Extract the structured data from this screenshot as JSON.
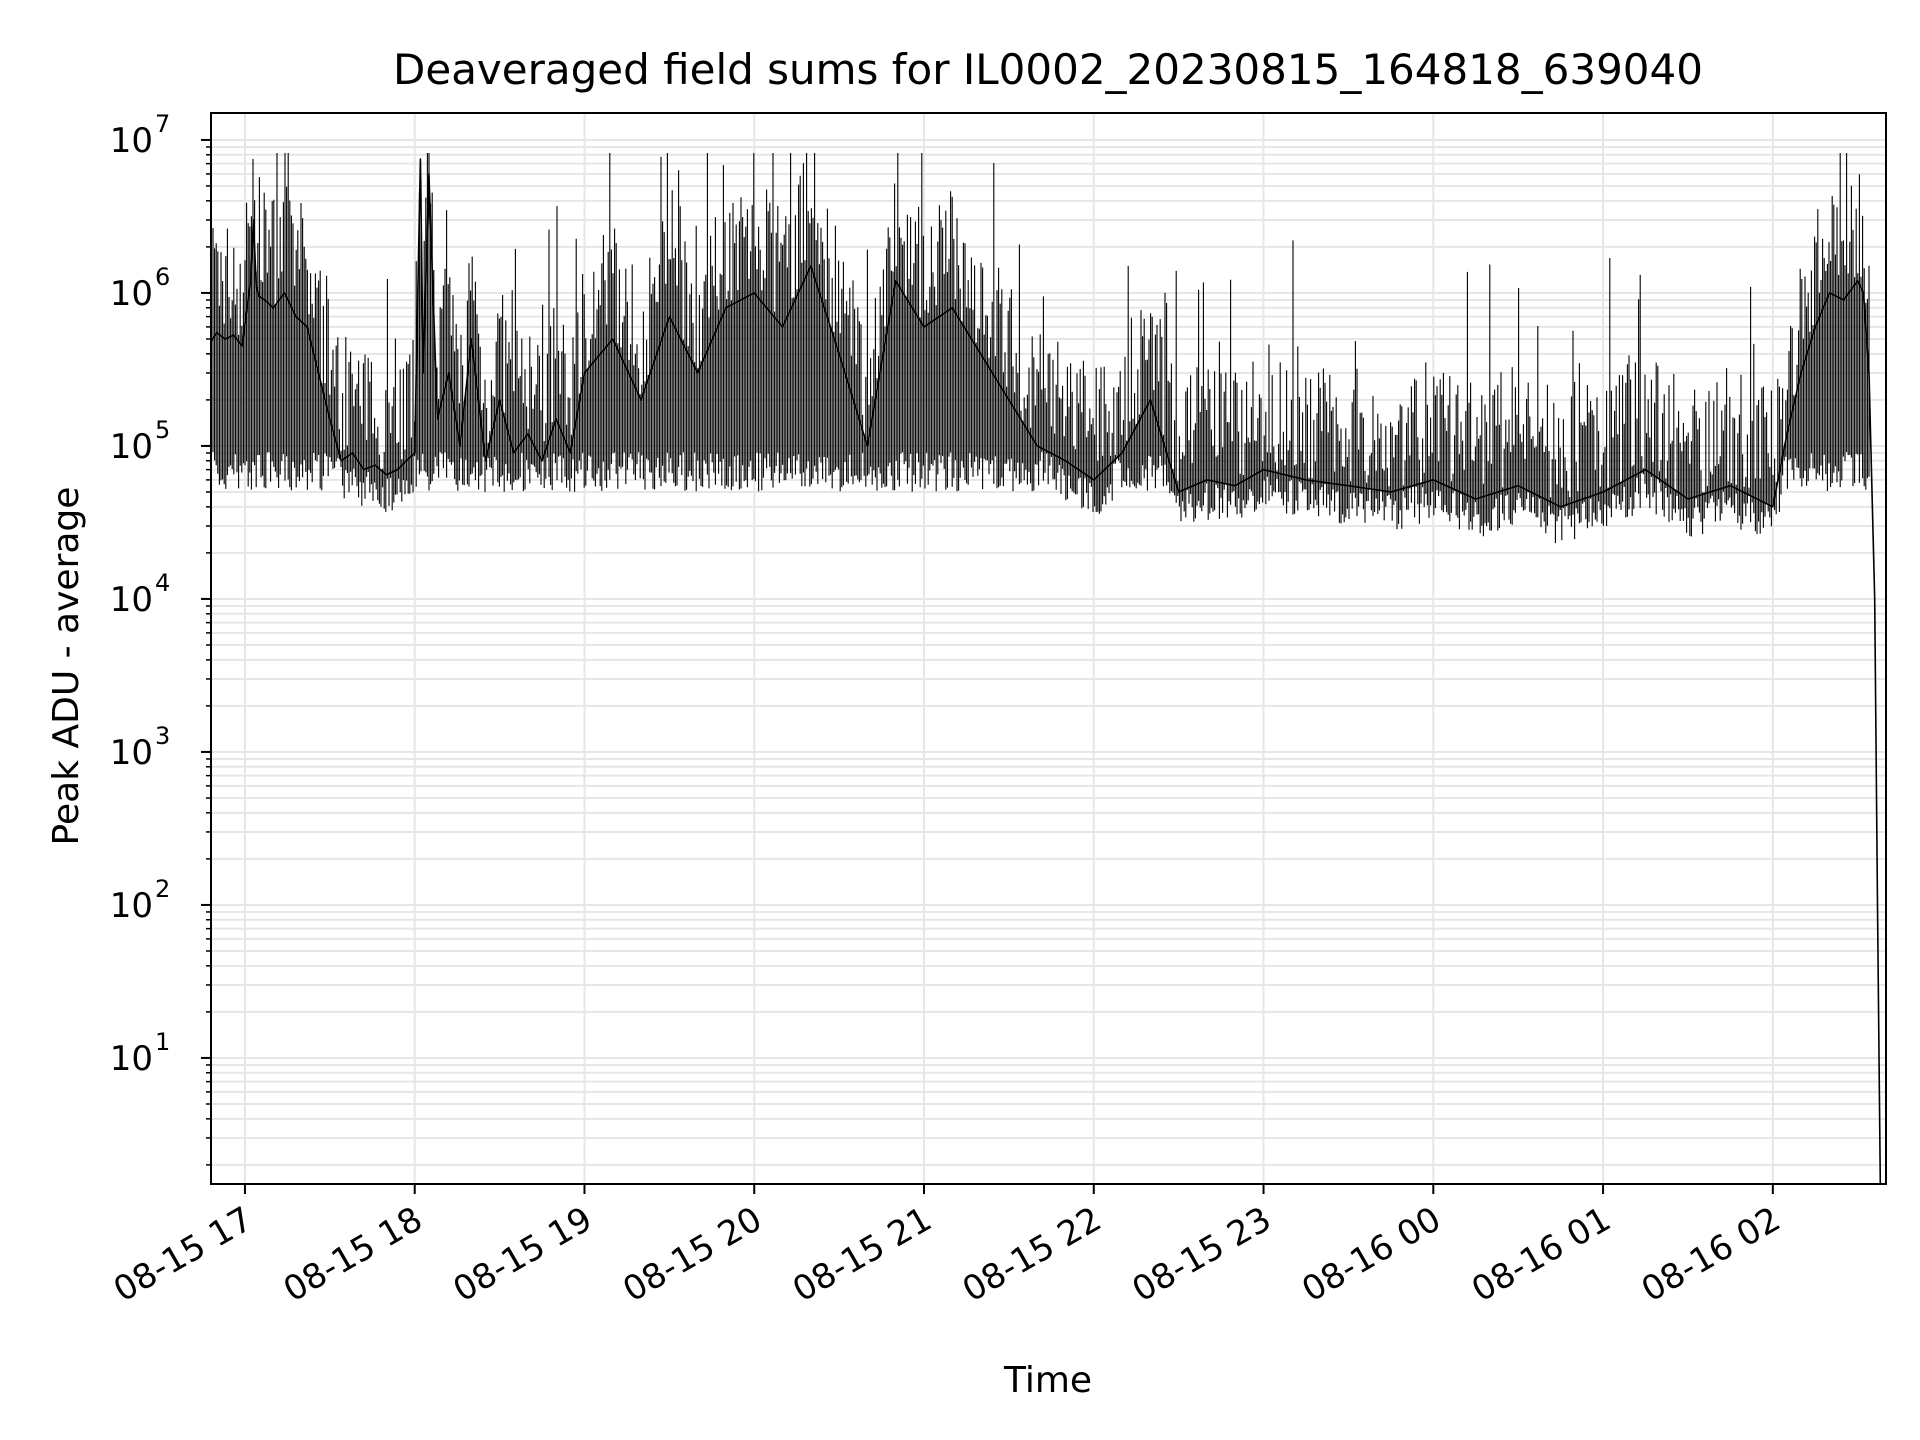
{
  "chart_data": {
    "type": "line",
    "title": "Deaveraged field sums for IL0002_20230815_164818_639040",
    "xlabel": "Time",
    "ylabel": "Peak ADU - average",
    "yscale": "log",
    "ylim": [
      1.5,
      15000000
    ],
    "xlim": [
      "2023-08-15 16:48",
      "2023-08-16 02:40"
    ],
    "grid": true,
    "grid_color": "#e6e6e6",
    "line_color": "#000000",
    "x_ticks": [
      "08-15 17",
      "08-15 18",
      "08-15 19",
      "08-15 20",
      "08-15 21",
      "08-15 22",
      "08-15 23",
      "08-16 00",
      "08-16 01",
      "08-16 02"
    ],
    "y_ticks": [
      {
        "base": "10",
        "exp": "1"
      },
      {
        "base": "10",
        "exp": "2"
      },
      {
        "base": "10",
        "exp": "3"
      },
      {
        "base": "10",
        "exp": "4"
      },
      {
        "base": "10",
        "exp": "5"
      },
      {
        "base": "10",
        "exp": "6"
      },
      {
        "base": "10",
        "exp": "7"
      }
    ],
    "series": [
      {
        "x": [
          "2023-08-15 16:48",
          "2023-08-15 16:50",
          "2023-08-15 16:53",
          "2023-08-15 16:56",
          "2023-08-15 16:59",
          "2023-08-15 17:02",
          "2023-08-15 17:03",
          "2023-08-15 17:04",
          "2023-08-15 17:05",
          "2023-08-15 17:07",
          "2023-08-15 17:10",
          "2023-08-15 17:14",
          "2023-08-15 17:18",
          "2023-08-15 17:22",
          "2023-08-15 17:26",
          "2023-08-15 17:30",
          "2023-08-15 17:34",
          "2023-08-15 17:38",
          "2023-08-15 17:42",
          "2023-08-15 17:46",
          "2023-08-15 17:50",
          "2023-08-15 17:54",
          "2023-08-15 17:57",
          "2023-08-15 18:00",
          "2023-08-15 18:02",
          "2023-08-15 18:03",
          "2023-08-15 18:05",
          "2023-08-15 18:08",
          "2023-08-15 18:12",
          "2023-08-15 18:16",
          "2023-08-15 18:20",
          "2023-08-15 18:25",
          "2023-08-15 18:30",
          "2023-08-15 18:35",
          "2023-08-15 18:40",
          "2023-08-15 18:45",
          "2023-08-15 18:50",
          "2023-08-15 18:55",
          "2023-08-15 19:00",
          "2023-08-15 19:10",
          "2023-08-15 19:20",
          "2023-08-15 19:30",
          "2023-08-15 19:40",
          "2023-08-15 19:50",
          "2023-08-15 20:00",
          "2023-08-15 20:10",
          "2023-08-15 20:20",
          "2023-08-15 20:30",
          "2023-08-15 20:40",
          "2023-08-15 20:50",
          "2023-08-15 21:00",
          "2023-08-15 21:10",
          "2023-08-15 21:20",
          "2023-08-15 21:30",
          "2023-08-15 21:40",
          "2023-08-15 21:50",
          "2023-08-15 22:00",
          "2023-08-15 22:10",
          "2023-08-15 22:20",
          "2023-08-15 22:30",
          "2023-08-15 22:40",
          "2023-08-15 22:50",
          "2023-08-15 23:00",
          "2023-08-15 23:15",
          "2023-08-15 23:30",
          "2023-08-15 23:45",
          "2023-08-16 00:00",
          "2023-08-16 00:15",
          "2023-08-16 00:30",
          "2023-08-16 00:45",
          "2023-08-16 01:00",
          "2023-08-16 01:15",
          "2023-08-16 01:30",
          "2023-08-16 01:45",
          "2023-08-16 02:00",
          "2023-08-16 02:05",
          "2023-08-16 02:10",
          "2023-08-16 02:15",
          "2023-08-16 02:20",
          "2023-08-16 02:25",
          "2023-08-16 02:30",
          "2023-08-16 02:32",
          "2023-08-16 02:34",
          "2023-08-16 02:36",
          "2023-08-16 02:37",
          "2023-08-16 02:38"
        ],
        "y": [
          480000,
          550000,
          500000,
          530000,
          450000,
          1200000,
          3000000,
          1100000,
          950000,
          900000,
          800000,
          1000000,
          700000,
          600000,
          300000,
          150000,
          80000,
          90000,
          70000,
          75000,
          65000,
          70000,
          80000,
          90000,
          7500000,
          300000,
          6000000,
          150000,
          300000,
          100000,
          500000,
          80000,
          200000,
          90000,
          120000,
          80000,
          150000,
          90000,
          300000,
          500000,
          200000,
          700000,
          300000,
          800000,
          1000000,
          600000,
          1500000,
          400000,
          100000,
          1200000,
          600000,
          800000,
          400000,
          200000,
          100000,
          80000,
          60000,
          90000,
          200000,
          50000,
          60000,
          55000,
          70000,
          60000,
          55000,
          50000,
          60000,
          45000,
          55000,
          40000,
          50000,
          70000,
          45000,
          55000,
          40000,
          120000,
          300000,
          600000,
          1000000,
          900000,
          1200000,
          1000000,
          300000,
          10000,
          100,
          1.5
        ]
      }
    ]
  }
}
